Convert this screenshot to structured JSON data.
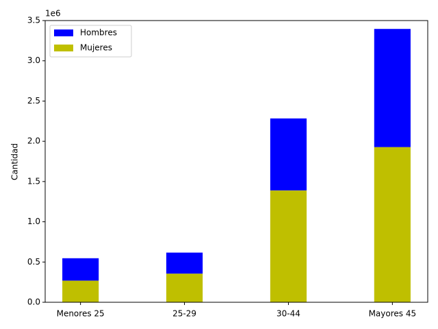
{
  "chart_data": {
    "type": "stacked_bar",
    "y_label": "Cantidad",
    "y_offset_label": "1e6",
    "categories": [
      "Menores 25",
      "25-29",
      "30-44",
      "Mayores 45"
    ],
    "series": [
      {
        "name": "Hombres",
        "color": "#0000ff",
        "values": [
          0.278,
          0.261,
          0.894,
          1.468
        ]
      },
      {
        "name": "Mujeres",
        "color": "#bfbf00",
        "values": [
          0.269,
          0.356,
          1.39,
          1.928
        ]
      }
    ],
    "ylim": [
      0,
      3.5
    ],
    "yticks": [
      {
        "value": 0,
        "label": "0.0"
      },
      0.5,
      {
        "value": 1,
        "label": "1.0"
      },
      1.5,
      {
        "value": 2,
        "label": "2.0"
      },
      2.5,
      {
        "value": 3,
        "label": "3.0"
      },
      3.5
    ],
    "legend": "upper left"
  }
}
